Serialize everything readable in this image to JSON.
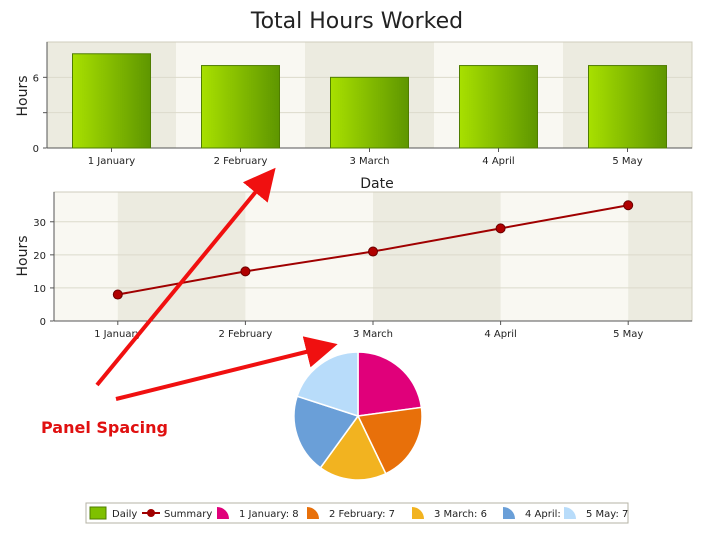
{
  "chart_data": [
    {
      "type": "bar",
      "title": "Total Hours Worked",
      "xlabel": "Date",
      "ylabel": "Hours",
      "categories": [
        "1 January",
        "2 February",
        "3 March",
        "4 April",
        "5 May"
      ],
      "series": [
        {
          "name": "Daily",
          "values": [
            8,
            7,
            6,
            7,
            7
          ]
        }
      ],
      "ylim": [
        0,
        9
      ],
      "yticks": [
        0,
        3,
        6
      ],
      "yticks_labeled": [
        0,
        6
      ],
      "grid": true,
      "colors": {
        "bar_light": "#a8e000",
        "bar_dark": "#5e9600",
        "band": "#ecebe0",
        "band_alt": "#f9f8f2"
      }
    },
    {
      "type": "line",
      "xlabel": "",
      "ylabel": "Hours",
      "categories": [
        "1 January",
        "2 February",
        "3 March",
        "4 April",
        "5 May"
      ],
      "series": [
        {
          "name": "Summary",
          "values": [
            8,
            15,
            21,
            28,
            35
          ]
        }
      ],
      "ylim": [
        0,
        39
      ],
      "yticks": [
        0,
        10,
        20,
        30
      ],
      "grid": true,
      "colors": {
        "line": "#a00000",
        "marker": "#b00000"
      }
    },
    {
      "type": "pie",
      "slices": [
        {
          "label": "1 January: 8",
          "value": 8,
          "color": "#e0007a"
        },
        {
          "label": "2 February: 7",
          "value": 7,
          "color": "#e8700a"
        },
        {
          "label": "3 March: 6",
          "value": 6,
          "color": "#f2b320"
        },
        {
          "label": "4 April: 7",
          "value": 7,
          "color": "#6a9fd8"
        },
        {
          "label": "5 May: 7",
          "value": 7,
          "color": "#b8dcfa"
        }
      ]
    }
  ],
  "annotation": {
    "text": "Panel Spacing",
    "color": "#e01010"
  },
  "legend": {
    "placement": "bottom",
    "items": [
      {
        "label": "Daily",
        "kind": "bar",
        "color": "#7fc000"
      },
      {
        "label": "Summary",
        "kind": "line",
        "color": "#a00000"
      },
      {
        "label": "1 January: 8",
        "kind": "pie",
        "color": "#e0007a"
      },
      {
        "label": "2 February: 7",
        "kind": "pie",
        "color": "#e8700a"
      },
      {
        "label": "3 March: 6",
        "kind": "pie",
        "color": "#f2b320"
      },
      {
        "label": "4 April: 7",
        "kind": "pie",
        "color": "#6a9fd8"
      },
      {
        "label": "5 May: 7",
        "kind": "pie",
        "color": "#b8dcfa"
      }
    ]
  }
}
